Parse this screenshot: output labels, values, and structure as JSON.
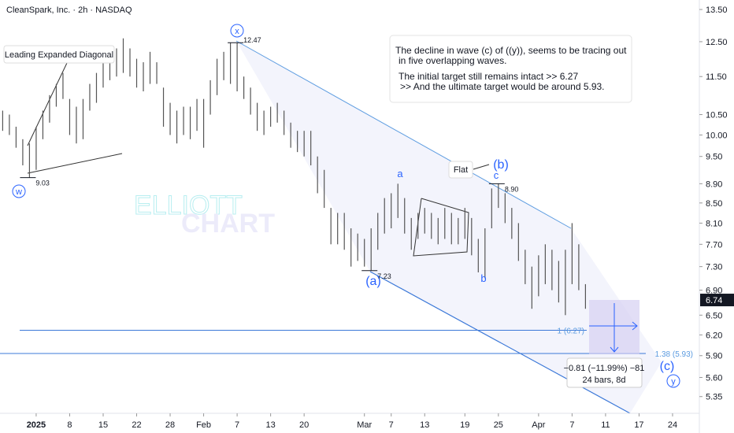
{
  "chart_data": {
    "type": "range-bar",
    "title": "CleanSpark, Inc. · 2h · NASDAQ",
    "watermark": [
      "ELLIOTT",
      "CHART"
    ],
    "log_scale": true,
    "color": "#555555",
    "x": [
      -5,
      -4,
      -3,
      -2,
      -1,
      0,
      1,
      2,
      3,
      4,
      5,
      6,
      7,
      8,
      9,
      10,
      11,
      12,
      13,
      14,
      15,
      16,
      17,
      18,
      19,
      20,
      21,
      22,
      23,
      24,
      25,
      26,
      27,
      28,
      29,
      30,
      31,
      32,
      33,
      34,
      35,
      36,
      37,
      38,
      39,
      40,
      41,
      42,
      43,
      44,
      45,
      46,
      47,
      48,
      49,
      50,
      51,
      52,
      53,
      54,
      55,
      56,
      57,
      58,
      59,
      60,
      61,
      62,
      63,
      64,
      65,
      66,
      67,
      68,
      69,
      70,
      71,
      72,
      73,
      74,
      75,
      76,
      77,
      78,
      79,
      80,
      81,
      82
    ],
    "high": [
      10.6,
      10.5,
      10.2,
      9.9,
      9.8,
      10.2,
      10.6,
      11.0,
      11.3,
      11.6,
      10.9,
      10.7,
      10.9,
      11.3,
      11.6,
      12.0,
      12.2,
      12.3,
      12.6,
      12.3,
      12.0,
      11.9,
      12.2,
      11.9,
      11.2,
      10.8,
      10.6,
      10.7,
      10.7,
      10.9,
      10.9,
      11.4,
      12.0,
      12.2,
      12.47,
      12.47,
      11.5,
      11.2,
      10.8,
      10.6,
      10.7,
      10.8,
      10.6,
      10.3,
      10.1,
      10.1,
      10.1,
      9.5,
      9.2,
      8.4,
      8.3,
      8.3,
      8.0,
      7.9,
      7.8,
      8.0,
      8.3,
      8.6,
      8.7,
      8.9,
      8.6,
      8.2,
      8.3,
      8.4,
      8.3,
      8.2,
      8.4,
      8.3,
      8.2,
      8.4,
      8.2,
      7.8,
      8.0,
      8.8,
      8.9,
      8.7,
      8.4,
      8.1,
      7.6,
      7.3,
      7.5,
      7.7,
      7.6,
      7.4,
      7.6,
      8.1,
      7.7,
      7.0
    ],
    "low": [
      10.1,
      10.0,
      9.7,
      9.3,
      9.03,
      9.2,
      9.9,
      10.3,
      10.7,
      10.9,
      10.0,
      9.8,
      9.9,
      10.6,
      10.8,
      11.2,
      11.4,
      11.5,
      11.6,
      11.5,
      11.2,
      11.1,
      11.3,
      11.3,
      10.2,
      10.0,
      9.8,
      10.0,
      9.9,
      10.1,
      9.7,
      10.5,
      11.0,
      11.4,
      11.3,
      11.1,
      10.9,
      10.5,
      10.1,
      10.0,
      10.2,
      10.3,
      10.0,
      9.7,
      9.6,
      9.5,
      9.3,
      8.7,
      8.4,
      7.7,
      7.7,
      7.6,
      7.3,
      7.4,
      7.3,
      7.23,
      7.6,
      7.9,
      8.0,
      8.2,
      7.9,
      7.6,
      7.8,
      7.9,
      7.8,
      7.7,
      7.8,
      7.7,
      7.7,
      7.8,
      7.5,
      7.2,
      7.1,
      8.0,
      8.4,
      8.1,
      7.8,
      7.4,
      7.0,
      6.6,
      6.8,
      7.0,
      6.9,
      6.7,
      6.5,
      7.0,
      6.9,
      6.6
    ],
    "xlim": [
      -5.4,
      99
    ],
    "xticks": [
      {
        "value": 0,
        "label": "2025"
      },
      {
        "value": 5,
        "label": "8"
      },
      {
        "value": 10,
        "label": "15"
      },
      {
        "value": 15,
        "label": "22"
      },
      {
        "value": 20,
        "label": "28"
      },
      {
        "value": 25,
        "label": "Feb"
      },
      {
        "value": 30,
        "label": "7"
      },
      {
        "value": 35,
        "label": "13"
      },
      {
        "value": 40,
        "label": "20"
      },
      {
        "value": 49,
        "label": "Mar"
      },
      {
        "value": 53,
        "label": "7"
      },
      {
        "value": 58,
        "label": "13"
      },
      {
        "value": 64,
        "label": "19"
      },
      {
        "value": 69,
        "label": "25"
      },
      {
        "value": 75,
        "label": "Apr"
      },
      {
        "value": 80,
        "label": "7"
      },
      {
        "value": 85,
        "label": "11"
      },
      {
        "value": 90,
        "label": "17"
      },
      {
        "value": 95,
        "label": "24"
      }
    ],
    "ylim": [
      5.14,
      13.81
    ],
    "yticks": [
      {
        "value": 13.5,
        "label": "13.50"
      },
      {
        "value": 12.5,
        "label": "12.50"
      },
      {
        "value": 11.5,
        "label": "11.50"
      },
      {
        "value": 10.5,
        "label": "10.50"
      },
      {
        "value": 10,
        "label": "10.00"
      },
      {
        "value": 9.5,
        "label": "9.50"
      },
      {
        "value": 8.9,
        "label": "8.90"
      },
      {
        "value": 8.5,
        "label": "8.50"
      },
      {
        "value": 8.1,
        "label": "8.10"
      },
      {
        "value": 7.7,
        "label": "7.70"
      },
      {
        "value": 7.3,
        "label": "7.30"
      },
      {
        "value": 6.9,
        "label": "6.90"
      },
      {
        "value": 6.5,
        "label": "6.50"
      },
      {
        "value": 6.2,
        "label": "6.20"
      },
      {
        "value": 5.9,
        "label": "5.90"
      },
      {
        "value": 5.6,
        "label": "5.60"
      },
      {
        "value": 5.35,
        "label": "5.35"
      }
    ],
    "last_price": {
      "value": 6.74,
      "label": "6.74"
    },
    "pivots": [
      {
        "x": 30,
        "value": 12.47,
        "label": "12.47"
      },
      {
        "x": -1,
        "value": 9.03,
        "label": "9.03"
      },
      {
        "x": 50,
        "value": 7.23,
        "label": "7.23"
      },
      {
        "x": 69,
        "value": 8.9,
        "label": "8.90"
      }
    ],
    "levels": [
      {
        "value": 6.27,
        "label": "1 (6.27)"
      },
      {
        "value": 5.93,
        "label": "1.38 (5.93)"
      }
    ],
    "wave_labels": {
      "w": "w",
      "x": "x",
      "y": "y",
      "a": "a",
      "b": "b",
      "c": "c",
      "pa": "(a)",
      "pb": "(b)",
      "pc": "(c)"
    },
    "notes": {
      "diagonal": "Leading Expanded Diagonal",
      "flat": "Flat",
      "box": [
        "The decline in wave (c) of ((y)), seems to be tracing out",
        "in five overlapping waves.",
        "The initial target still remains intact >>  6.27",
        ">> And the ultimate target would be around 5.93."
      ]
    },
    "measure": [
      "−0.81 (−11.99%) −81",
      "24 bars, 8d"
    ]
  }
}
